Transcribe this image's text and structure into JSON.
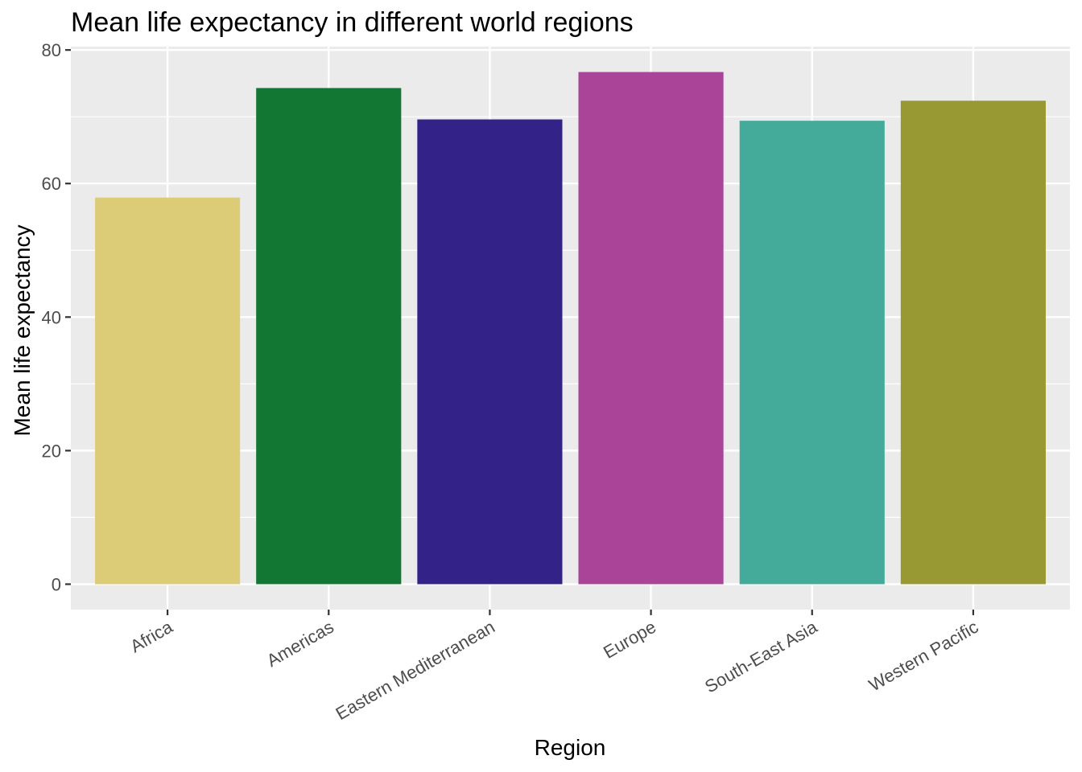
{
  "chart_data": {
    "type": "bar",
    "title": "Mean life expectancy in different world regions",
    "xlabel": "Region",
    "ylabel": "Mean life expectancy",
    "categories": [
      "Africa",
      "Americas",
      "Eastern Mediterranean",
      "Europe",
      "South-East Asia",
      "Western Pacific"
    ],
    "values": [
      57.9,
      74.3,
      69.6,
      76.7,
      69.4,
      72.4
    ],
    "colors": [
      "#DDCC77",
      "#117733",
      "#332288",
      "#AA4499",
      "#44AA99",
      "#999933"
    ],
    "ylim": [
      -3.8,
      80.5
    ],
    "yticks": [
      0,
      20,
      40,
      60,
      80
    ],
    "ytick_labels": [
      "0",
      "20",
      "40",
      "60",
      "80"
    ],
    "grid": true,
    "panel_background": "#EBEBEB",
    "gridline_color": "#FFFFFF",
    "legend": "none"
  }
}
